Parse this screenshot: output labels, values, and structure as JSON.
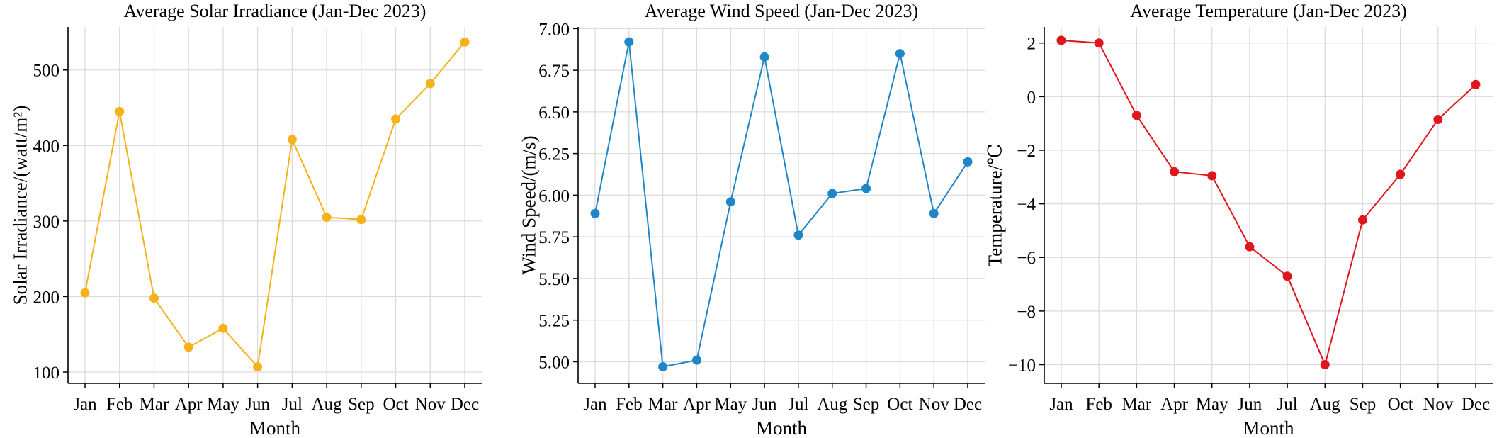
{
  "chart_data": [
    {
      "type": "line",
      "title": "Average Solar Irradiance (Jan-Dec 2023)",
      "xlabel": "Month",
      "ylabel": "Solar Irradiance/(watt/m²)",
      "categories": [
        "Jan",
        "Feb",
        "Mar",
        "Apr",
        "May",
        "Jun",
        "Jul",
        "Aug",
        "Sep",
        "Oct",
        "Nov",
        "Dec"
      ],
      "series": [
        {
          "values": [
            205,
            445,
            198,
            133,
            158,
            107,
            408,
            305,
            302,
            435,
            482,
            537
          ]
        }
      ],
      "color": "#F5B21B",
      "yticks": [
        100,
        200,
        300,
        400,
        500
      ],
      "ylim": [
        85,
        557
      ],
      "grid": true
    },
    {
      "type": "line",
      "title": "Average Wind Speed (Jan-Dec 2023)",
      "xlabel": "Month",
      "ylabel": "Wind Speed/(m/s)",
      "categories": [
        "Jan",
        "Feb",
        "Mar",
        "Apr",
        "May",
        "Jun",
        "Jul",
        "Aug",
        "Sep",
        "Oct",
        "Nov",
        "Dec"
      ],
      "series": [
        {
          "values": [
            5.89,
            6.92,
            4.97,
            5.01,
            5.96,
            6.83,
            5.76,
            6.01,
            6.04,
            6.85,
            5.89,
            6.2
          ]
        }
      ],
      "color": "#1F87C8",
      "yticks": [
        "5.00",
        "5.25",
        "5.50",
        "5.75",
        "6.00",
        "6.25",
        "6.50",
        "6.75",
        "7.00"
      ],
      "ylim": [
        4.87,
        7.01
      ],
      "grid": true
    },
    {
      "type": "line",
      "title": "Average Temperature (Jan-Dec 2023)",
      "xlabel": "Month",
      "ylabel": "Temperature/℃",
      "categories": [
        "Jan",
        "Feb",
        "Mar",
        "Apr",
        "May",
        "Jun",
        "Jul",
        "Aug",
        "Sep",
        "Oct",
        "Nov",
        "Dec"
      ],
      "series": [
        {
          "values": [
            2.1,
            2.0,
            -0.7,
            -2.8,
            -2.95,
            -5.6,
            -6.7,
            -10.0,
            -4.6,
            -2.9,
            -0.85,
            0.45
          ]
        }
      ],
      "color": "#E0161E",
      "yticks": [
        -10,
        -8,
        -6,
        -4,
        -2,
        0,
        2
      ],
      "ylim": [
        -10.7,
        2.6
      ],
      "grid": true
    }
  ]
}
